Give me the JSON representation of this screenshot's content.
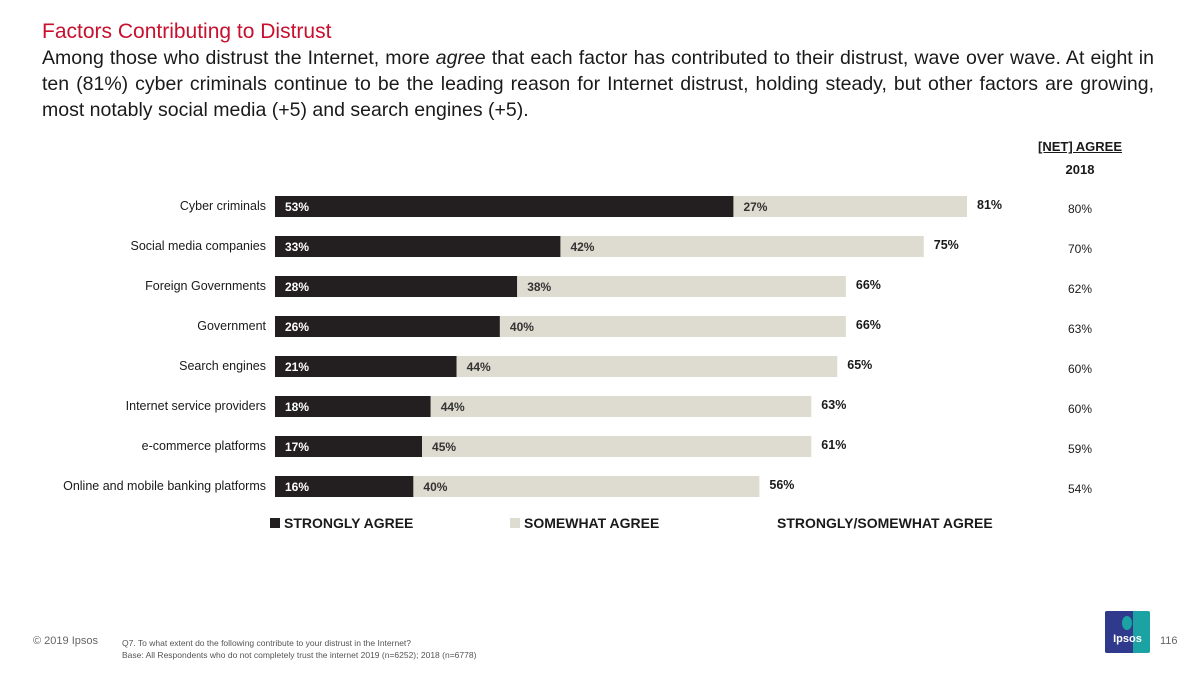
{
  "title": "Factors Contributing to Distrust",
  "subtitle": {
    "before": "Among those who distrust the Internet, more ",
    "emph": "agree",
    "after": " that each factor has contributed to their distrust, wave over wave. At eight in ten (81%) cyber criminals continue to be the leading reason for Internet distrust, holding steady, but other factors are growing, most notably social media (+5) and search engines (+5)."
  },
  "net_header": "[NET] AGREE",
  "net_year": "2018",
  "legend": {
    "strongly": "STRONGLY AGREE",
    "somewhat": "SOMEWHAT AGREE",
    "net": "STRONGLY/SOMEWHAT AGREE"
  },
  "colors": {
    "strongly": "#231f20",
    "somewhat": "#dedcd0"
  },
  "chart_data": {
    "type": "bar",
    "orientation": "horizontal",
    "stacked": true,
    "categories": [
      "Cyber criminals",
      "Social media companies",
      "Foreign Governments",
      "Government",
      "Search engines",
      "Internet service providers",
      "e-commerce platforms",
      "Online and mobile banking platforms"
    ],
    "series": [
      {
        "name": "STRONGLY AGREE",
        "values": [
          53,
          33,
          28,
          26,
          21,
          18,
          17,
          16
        ]
      },
      {
        "name": "SOMEWHAT AGREE",
        "values": [
          27,
          42,
          38,
          40,
          44,
          44,
          45,
          40
        ]
      }
    ],
    "net": [
      81,
      75,
      66,
      66,
      65,
      63,
      61,
      56
    ],
    "net_2018": [
      80,
      70,
      62,
      63,
      60,
      60,
      59,
      54
    ],
    "value_suffix": "%",
    "xlim": [
      0,
      100
    ]
  },
  "footer": {
    "copyright": "© 2019 Ipsos",
    "question": "Q7.  To what extent do the following contribute to your distrust in the Internet?",
    "base": "Base: All Respondents who do not completely trust the internet 2019 (n=6252); 2018 (n=6778)",
    "page": "116",
    "logo": "Ipsos"
  }
}
